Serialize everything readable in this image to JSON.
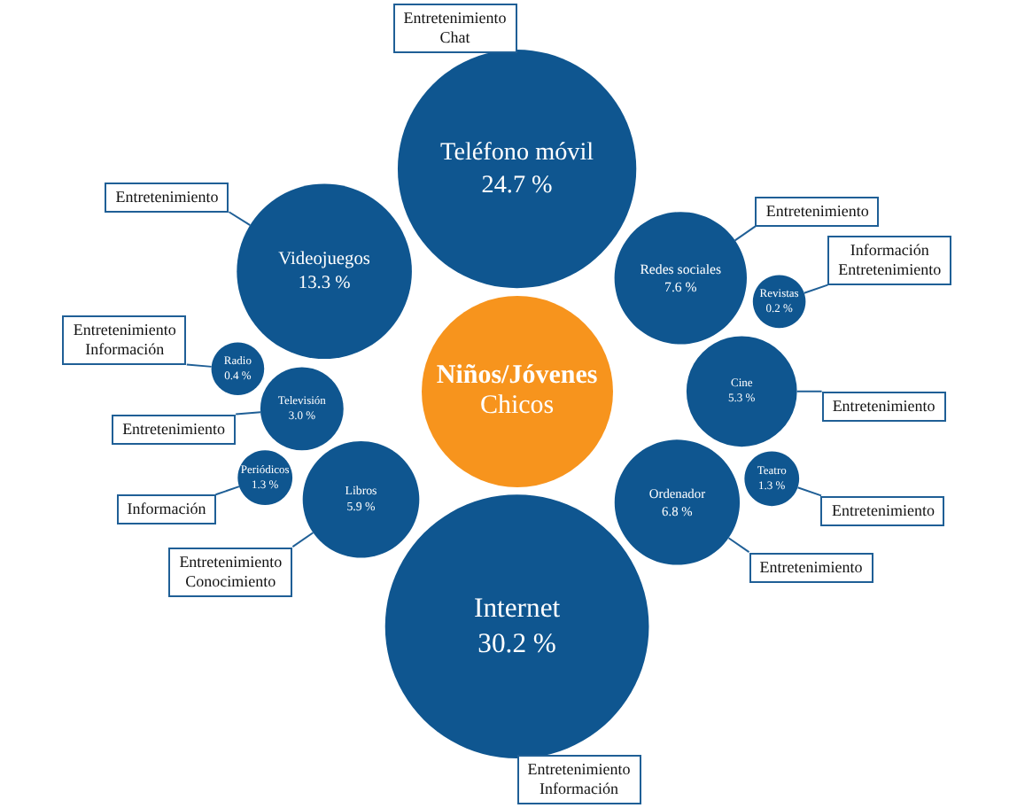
{
  "chart_data": {
    "type": "other",
    "title": "Niños/Jóvenes",
    "subtitle": "Chicos",
    "color": "#0f5690",
    "categories": [
      "Internet",
      "Teléfono móvil",
      "Videojuegos",
      "Redes sociales",
      "Ordenador",
      "Libros",
      "Cine",
      "Televisión",
      "Periódicos",
      "Teatro",
      "Radio",
      "Revistas"
    ],
    "values": [
      30.2,
      24.7,
      13.3,
      7.6,
      6.8,
      5.9,
      5.3,
      3.0,
      1.3,
      1.3,
      0.4,
      0.2
    ],
    "value_labels": [
      "30.2 %",
      "24.7 %",
      "13.3 %",
      "7.6 %",
      "6.8 %",
      "5.9 %",
      "5.3 %",
      "3.0 %",
      "1.3 %",
      "1.3 %",
      "0.4 %",
      "0.2 %"
    ],
    "annotations": [
      "Entretenimiento\nInformación",
      "Entretenimiento\nChat",
      "Entretenimiento",
      "Entretenimiento",
      "Entretenimiento",
      "Entretenimiento\nConocimiento",
      "Entretenimiento",
      "Entretenimiento",
      "Información",
      "Entretenimiento",
      "Entretenimiento\nInformación",
      "Información\nEntretenimiento"
    ]
  }
}
